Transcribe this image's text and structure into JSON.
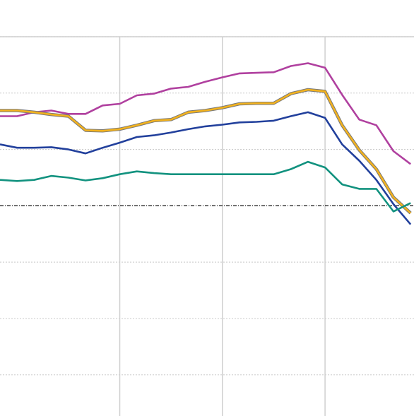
{
  "chart_data": {
    "type": "line",
    "x": [
      -1,
      0,
      1,
      2,
      3,
      4,
      5,
      6,
      7,
      8,
      9,
      10,
      11,
      12,
      13,
      14,
      15,
      16,
      17,
      18,
      19,
      20,
      21,
      22,
      23
    ],
    "series": [
      {
        "color": "#b0409f",
        "values": [
          1.59,
          1.59,
          1.66,
          1.69,
          1.63,
          1.63,
          1.78,
          1.81,
          1.96,
          1.99,
          2.08,
          2.11,
          2.2,
          2.28,
          2.35,
          2.36,
          2.37,
          2.48,
          2.53,
          2.45,
          1.97,
          1.53,
          1.43,
          0.97,
          0.74
        ]
      },
      {
        "color": "#f2b21e",
        "outline": "#777777",
        "values": [
          1.69,
          1.69,
          1.66,
          1.62,
          1.59,
          1.34,
          1.33,
          1.36,
          1.43,
          1.51,
          1.53,
          1.66,
          1.69,
          1.74,
          1.81,
          1.82,
          1.82,
          1.99,
          2.06,
          2.03,
          1.43,
          0.99,
          0.65,
          0.15,
          -0.13
        ]
      },
      {
        "color": "#22409c",
        "values": [
          1.09,
          1.03,
          1.03,
          1.04,
          1.0,
          0.93,
          1.03,
          1.12,
          1.22,
          1.25,
          1.3,
          1.36,
          1.41,
          1.44,
          1.48,
          1.49,
          1.51,
          1.59,
          1.66,
          1.56,
          1.09,
          0.8,
          0.46,
          0.03,
          -0.33
        ]
      },
      {
        "color": "#12927f",
        "values": [
          0.46,
          0.44,
          0.46,
          0.53,
          0.5,
          0.45,
          0.49,
          0.56,
          0.61,
          0.58,
          0.56,
          0.56,
          0.56,
          0.56,
          0.56,
          0.56,
          0.56,
          0.65,
          0.78,
          0.68,
          0.38,
          0.3,
          0.3,
          -0.1,
          0.05
        ]
      }
    ],
    "xlim": [
      -1,
      23.2
    ],
    "xticks": [
      6,
      12,
      18,
      24
    ],
    "ylim": [
      -3.73,
      3
    ],
    "yticks": [
      -3,
      -2,
      -1,
      1,
      2,
      3
    ],
    "hline": 0,
    "grid": true
  }
}
